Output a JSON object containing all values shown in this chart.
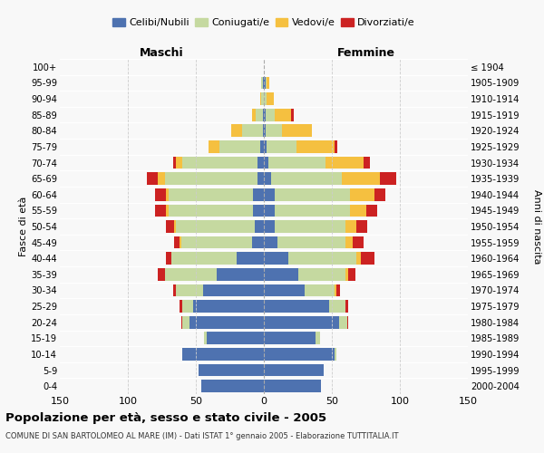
{
  "age_groups": [
    "0-4",
    "5-9",
    "10-14",
    "15-19",
    "20-24",
    "25-29",
    "30-34",
    "35-39",
    "40-44",
    "45-49",
    "50-54",
    "55-59",
    "60-64",
    "65-69",
    "70-74",
    "75-79",
    "80-84",
    "85-89",
    "90-94",
    "95-99",
    "100+"
  ],
  "birth_years": [
    "2000-2004",
    "1995-1999",
    "1990-1994",
    "1985-1989",
    "1980-1984",
    "1975-1979",
    "1970-1974",
    "1965-1969",
    "1960-1964",
    "1955-1959",
    "1950-1954",
    "1945-1949",
    "1940-1944",
    "1935-1939",
    "1930-1934",
    "1925-1929",
    "1920-1924",
    "1915-1919",
    "1910-1914",
    "1905-1909",
    "≤ 1904"
  ],
  "male": {
    "celibi": [
      46,
      48,
      60,
      42,
      55,
      52,
      45,
      35,
      20,
      9,
      7,
      8,
      8,
      5,
      5,
      3,
      1,
      1,
      0,
      1,
      0
    ],
    "coniugati": [
      0,
      0,
      0,
      2,
      5,
      8,
      20,
      38,
      48,
      52,
      58,
      62,
      62,
      68,
      55,
      30,
      15,
      5,
      2,
      1,
      0
    ],
    "vedovi": [
      0,
      0,
      0,
      0,
      0,
      0,
      0,
      0,
      0,
      1,
      1,
      2,
      2,
      5,
      5,
      8,
      8,
      3,
      1,
      0,
      0
    ],
    "divorziati": [
      0,
      0,
      0,
      0,
      1,
      2,
      2,
      5,
      4,
      4,
      6,
      8,
      8,
      8,
      2,
      0,
      0,
      0,
      0,
      0,
      0
    ]
  },
  "female": {
    "nubili": [
      42,
      44,
      52,
      38,
      55,
      48,
      30,
      25,
      18,
      10,
      8,
      8,
      8,
      5,
      3,
      2,
      1,
      1,
      0,
      1,
      0
    ],
    "coniugate": [
      0,
      0,
      1,
      3,
      6,
      12,
      22,
      35,
      50,
      50,
      52,
      55,
      55,
      52,
      42,
      22,
      12,
      7,
      2,
      1,
      0
    ],
    "vedove": [
      0,
      0,
      0,
      0,
      0,
      0,
      1,
      2,
      3,
      5,
      8,
      12,
      18,
      28,
      28,
      28,
      22,
      12,
      5,
      2,
      0
    ],
    "divorziate": [
      0,
      0,
      0,
      0,
      1,
      2,
      3,
      5,
      10,
      8,
      8,
      8,
      8,
      12,
      5,
      2,
      0,
      2,
      0,
      0,
      0
    ]
  },
  "colors": {
    "celibi": "#4e72b0",
    "coniugati": "#c5d9a0",
    "vedovi": "#f5c040",
    "divorziati": "#cc2222"
  },
  "xlim": 150,
  "title": "Popolazione per età, sesso e stato civile - 2005",
  "subtitle": "COMUNE DI SAN BARTOLOMEO AL MARE (IM) - Dati ISTAT 1° gennaio 2005 - Elaborazione TUTTITALIA.IT",
  "ylabel_left": "Fasce di età",
  "ylabel_right": "Anni di nascita",
  "xlabel_male": "Maschi",
  "xlabel_female": "Femmine",
  "legend_labels": [
    "Celibi/Nubili",
    "Coniugati/e",
    "Vedovi/e",
    "Divorziati/e"
  ],
  "bg_color": "#f8f8f8"
}
